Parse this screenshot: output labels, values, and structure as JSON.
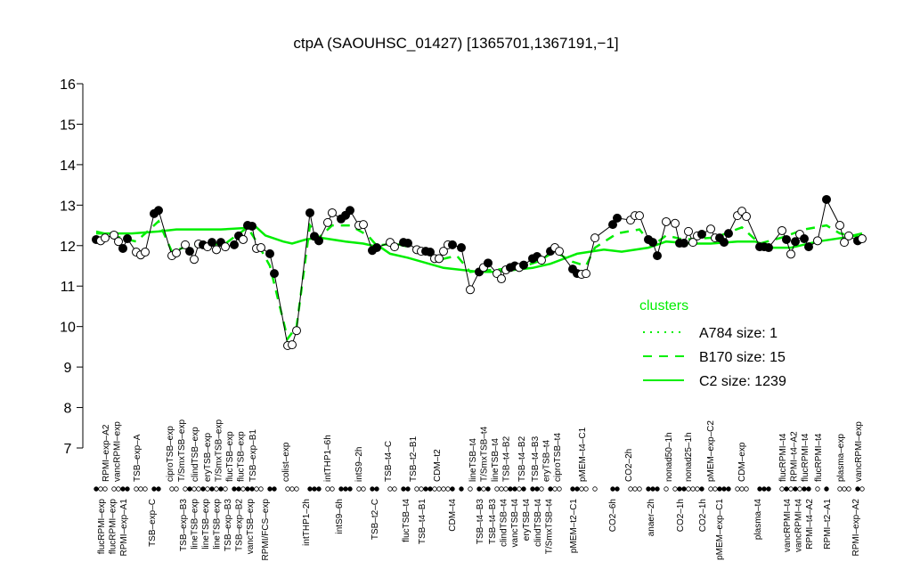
{
  "chart_data": {
    "type": "scatter",
    "title": "ctpA (SAOUHSC_01427) [1365701,1367191,−1]",
    "xlabel": "",
    "ylabel": "",
    "ylim": [
      7,
      16
    ],
    "xlim": [
      1,
      173
    ],
    "yticks": [
      "7",
      "8",
      "9",
      "10",
      "11",
      "12",
      "13",
      "14",
      "15",
      "16"
    ],
    "grid": false,
    "colors": {
      "points": "#000000",
      "clusters": "#00ee00"
    },
    "points": [
      [
        1,
        12.15,
        1
      ],
      [
        2,
        12.12,
        0
      ],
      [
        3,
        12.19,
        0
      ],
      [
        5,
        12.26,
        0
      ],
      [
        6,
        12.1,
        0
      ],
      [
        7,
        11.93,
        1
      ],
      [
        8,
        12.17,
        1
      ],
      [
        10,
        11.84,
        0
      ],
      [
        11,
        11.77,
        0
      ],
      [
        12,
        11.84,
        0
      ],
      [
        14,
        12.79,
        1
      ],
      [
        15,
        12.87,
        1
      ],
      [
        18,
        11.75,
        0
      ],
      [
        19,
        11.82,
        0
      ],
      [
        21,
        12.02,
        0
      ],
      [
        22,
        11.86,
        1
      ],
      [
        23,
        11.66,
        0
      ],
      [
        24,
        12.04,
        0
      ],
      [
        25,
        12.02,
        1
      ],
      [
        26,
        11.97,
        0
      ],
      [
        27,
        12.08,
        1
      ],
      [
        28,
        11.9,
        0
      ],
      [
        29,
        12.08,
        1
      ],
      [
        30,
        11.97,
        0
      ],
      [
        32,
        12.02,
        1
      ],
      [
        33,
        12.24,
        1
      ],
      [
        34,
        12.15,
        0
      ],
      [
        35,
        12.5,
        1
      ],
      [
        36,
        12.48,
        1
      ],
      [
        37,
        11.93,
        0
      ],
      [
        38,
        11.95,
        0
      ],
      [
        40,
        11.8,
        1
      ],
      [
        41,
        11.31,
        1
      ],
      [
        44,
        9.53,
        0
      ],
      [
        45,
        9.55,
        0
      ],
      [
        46,
        9.9,
        0
      ],
      [
        49,
        12.81,
        1
      ],
      [
        50,
        12.23,
        1
      ],
      [
        51,
        12.12,
        1
      ],
      [
        53,
        12.57,
        0
      ],
      [
        54,
        12.81,
        0
      ],
      [
        56,
        12.66,
        1
      ],
      [
        57,
        12.75,
        1
      ],
      [
        58,
        12.87,
        1
      ],
      [
        60,
        12.5,
        0
      ],
      [
        61,
        12.52,
        0
      ],
      [
        63,
        11.88,
        1
      ],
      [
        64,
        11.95,
        1
      ],
      [
        67,
        12.08,
        0
      ],
      [
        68,
        11.97,
        0
      ],
      [
        70,
        12.08,
        1
      ],
      [
        71,
        12.06,
        1
      ],
      [
        73,
        11.9,
        0
      ],
      [
        74,
        11.86,
        0
      ],
      [
        75,
        11.86,
        1
      ],
      [
        76,
        11.84,
        1
      ],
      [
        77,
        11.68,
        0
      ],
      [
        78,
        11.68,
        0
      ],
      [
        79,
        11.86,
        0
      ],
      [
        80,
        12.02,
        0
      ],
      [
        81,
        12.02,
        1
      ],
      [
        83,
        11.95,
        1
      ],
      [
        85,
        10.91,
        0
      ],
      [
        87,
        11.35,
        1
      ],
      [
        88,
        11.46,
        0
      ],
      [
        89,
        11.57,
        1
      ],
      [
        91,
        11.31,
        0
      ],
      [
        92,
        11.18,
        0
      ],
      [
        93,
        11.4,
        0
      ],
      [
        94,
        11.46,
        1
      ],
      [
        95,
        11.5,
        1
      ],
      [
        96,
        11.46,
        0
      ],
      [
        97,
        11.52,
        1
      ],
      [
        99,
        11.68,
        1
      ],
      [
        100,
        11.73,
        1
      ],
      [
        101,
        11.64,
        0
      ],
      [
        103,
        11.86,
        1
      ],
      [
        104,
        11.95,
        0
      ],
      [
        105,
        11.86,
        0
      ],
      [
        108,
        11.42,
        1
      ],
      [
        109,
        11.31,
        1
      ],
      [
        110,
        11.29,
        0
      ],
      [
        111,
        11.31,
        0
      ],
      [
        113,
        12.19,
        0
      ],
      [
        117,
        12.52,
        1
      ],
      [
        118,
        12.68,
        1
      ],
      [
        121,
        12.63,
        0
      ],
      [
        122,
        12.74,
        0
      ],
      [
        123,
        12.74,
        0
      ],
      [
        125,
        12.15,
        1
      ],
      [
        126,
        12.08,
        1
      ],
      [
        127,
        11.75,
        1
      ],
      [
        129,
        12.59,
        0
      ],
      [
        131,
        12.55,
        0
      ],
      [
        132,
        12.06,
        1
      ],
      [
        133,
        12.06,
        1
      ],
      [
        134,
        12.35,
        0
      ],
      [
        135,
        12.08,
        0
      ],
      [
        136,
        12.24,
        0
      ],
      [
        137,
        12.28,
        1
      ],
      [
        139,
        12.41,
        0
      ],
      [
        140,
        12.19,
        0
      ],
      [
        141,
        12.19,
        1
      ],
      [
        142,
        12.08,
        1
      ],
      [
        143,
        12.3,
        1
      ],
      [
        145,
        12.74,
        0
      ],
      [
        146,
        12.85,
        0
      ],
      [
        147,
        12.72,
        0
      ],
      [
        150,
        11.97,
        1
      ],
      [
        151,
        11.97,
        1
      ],
      [
        152,
        11.95,
        1
      ],
      [
        155,
        12.37,
        0
      ],
      [
        156,
        12.15,
        1
      ],
      [
        157,
        11.79,
        0
      ],
      [
        158,
        12.1,
        1
      ],
      [
        159,
        12.28,
        0
      ],
      [
        160,
        12.17,
        1
      ],
      [
        161,
        11.97,
        1
      ],
      [
        163,
        12.12,
        0
      ],
      [
        165,
        13.14,
        1
      ],
      [
        168,
        12.5,
        0
      ],
      [
        169,
        12.08,
        0
      ],
      [
        170,
        12.24,
        0
      ],
      [
        172,
        12.12,
        1
      ],
      [
        173,
        12.17,
        0
      ]
    ],
    "series": [
      {
        "name": "C2 size: 1239",
        "style": "solid",
        "x": [
          1,
          9,
          15,
          19,
          29,
          37,
          39,
          43,
          45,
          48,
          51,
          57,
          61,
          65,
          67,
          71,
          79,
          87,
          91,
          99,
          103,
          109,
          115,
          119,
          125,
          129,
          135,
          139,
          145,
          149,
          153,
          157,
          163,
          169,
          173
        ],
        "values": [
          12.3,
          12.3,
          12.35,
          12.4,
          12.4,
          12.45,
          12.25,
          12.1,
          12.05,
          12.15,
          12.2,
          12.1,
          12.05,
          11.95,
          11.8,
          11.7,
          11.45,
          11.35,
          11.35,
          11.45,
          11.55,
          11.8,
          11.9,
          11.85,
          11.95,
          12.1,
          12.05,
          12.05,
          12.1,
          12.1,
          11.95,
          11.95,
          12.1,
          12.2,
          12.3
        ]
      },
      {
        "name": "B170 size: 15",
        "style": "dashed",
        "x": [
          1,
          10,
          14,
          15,
          18,
          22,
          30,
          35,
          37,
          40,
          44,
          46,
          49,
          51,
          54,
          58,
          62,
          64,
          68,
          74,
          78,
          82,
          85,
          90,
          96,
          100,
          104,
          108,
          111,
          113,
          118,
          123,
          126,
          129,
          133,
          140,
          146,
          150,
          155,
          160,
          165,
          168,
          173
        ],
        "values": [
          12.35,
          12.1,
          12.5,
          12.6,
          11.85,
          12.0,
          12.05,
          12.45,
          12.1,
          11.5,
          9.7,
          10.0,
          12.5,
          12.2,
          12.5,
          12.5,
          12.25,
          12.0,
          12.05,
          11.9,
          11.65,
          11.75,
          11.35,
          11.4,
          11.45,
          11.6,
          11.85,
          11.6,
          11.5,
          11.95,
          12.3,
          12.4,
          12.0,
          12.25,
          12.15,
          12.2,
          12.45,
          12.05,
          12.2,
          12.4,
          12.5,
          12.3,
          12.2
        ]
      },
      {
        "name": "A784 size: 1",
        "style": "dotted",
        "x": [],
        "values": []
      }
    ],
    "legend": {
      "title": "clusters",
      "placement": "right",
      "entries": [
        "A784 size: 1",
        "B170 size: 15",
        "C2 size: 1239"
      ]
    },
    "x_labels_top": [
      [
        "RPMI–exp–A2",
        3
      ],
      [
        "vancRPMI–exp",
        4.6
      ],
      [
        "TSB–exp–A",
        10
      ],
      [
        "ciproTSB–exp",
        17.4
      ],
      [
        "T/SmxTSB–exp",
        20
      ],
      [
        "clindTSB–exp",
        23
      ],
      [
        "eryTSB–exp",
        25.8
      ],
      [
        "T/SmxTSB–exp",
        28
      ],
      [
        "flucTSB–exp",
        30
      ],
      [
        "flucTSB–exp",
        32.8
      ],
      [
        "TSB–exp–B1",
        36
      ],
      [
        "colist–exp",
        43.4
      ],
      [
        "intTHP1–6h",
        52.8
      ],
      [
        "intS9–2h",
        59.8
      ],
      [
        "TSB–t4–C",
        66.4
      ],
      [
        "TSB–t2–B1",
        72
      ],
      [
        "CDM–t2",
        77.4
      ],
      [
        "lineTSB–t4",
        85.4
      ],
      [
        "T/SmxTSB–t4",
        87.8
      ],
      [
        "lineTSB–t4",
        90
      ],
      [
        "TSB–t4–B2",
        92
      ],
      [
        "TSB–t4–B2",
        96.4
      ],
      [
        "TSB–t4–B3",
        99.4
      ],
      [
        "eryTSB–t4",
        101.4
      ],
      [
        "ciproTSB–t4",
        103.4
      ],
      [
        "pMEM–t4–C1",
        110
      ],
      [
        "CO2–2h",
        120.4
      ],
      [
        "nonad50–1h",
        129.4
      ],
      [
        "nonad25–1h",
        133.8
      ],
      [
        "pMEM–exp–C2",
        138.8
      ],
      [
        "CDM–exp",
        145.8
      ],
      [
        "flucRPMI–t4",
        155
      ],
      [
        "RPMI–t4–A2",
        155.8
      ],
      [
        "flucRPMI–t4",
        159.4
      ],
      [
        "flucRPMI–t4",
        163
      ],
      [
        "plasma–exp",
        168
      ],
      [
        "vancRPMI–exp",
        172
      ]
    ],
    "x_labels_bottom": [
      [
        "flucRPMI–exp",
        2
      ],
      [
        "flucRPMI–exp",
        4
      ],
      [
        "RPMI–exp–A1",
        6
      ],
      [
        "TSB–exp–C",
        13.4
      ],
      [
        "TSB–exp–B3",
        20.4
      ],
      [
        "lineTSB–exp",
        22.4
      ],
      [
        "lineTSB–exp",
        24.8
      ],
      [
        "lineTSB–exp",
        27.8
      ],
      [
        "TSB–exp–B3",
        28.8
      ],
      [
        "TSB–exp–B2",
        31
      ],
      [
        "vancTSB–exp",
        33.4
      ],
      [
        "RPMI/FCS–exp",
        38.8
      ],
      [
        "intTHP1–2h",
        48
      ],
      [
        "intS9–6h",
        55.4
      ],
      [
        "TSB–t2–C",
        63.4
      ],
      [
        "flucTSB–t4",
        70.4
      ],
      [
        "TSB–t4–B1",
        74
      ],
      [
        "CDM–t4",
        80.8
      ],
      [
        "TSB–t4–B3",
        87
      ],
      [
        "TSB–t4–B3",
        89.8
      ],
      [
        "clindTSB–t4",
        92
      ],
      [
        "vancTSB–t4",
        94.8
      ],
      [
        "eryTSB–t4",
        97.4
      ],
      [
        "clindTSB–t4",
        100
      ],
      [
        "T/SmxTSB–t4",
        102
      ],
      [
        "pMEM–t2–C1",
        108
      ],
      [
        "CO2–6h",
        116.8
      ],
      [
        "anaer–2h",
        125.4
      ],
      [
        "CO2–1h",
        132
      ],
      [
        "CO2–1h",
        137
      ],
      [
        "pMEM–exp–C1",
        140.8
      ],
      [
        "plasma–t4",
        149.4
      ],
      [
        "vancRPMI–t4",
        156
      ],
      [
        "vancRPMI–t4",
        157.4
      ],
      [
        "RPMI–t4–A2",
        160
      ],
      [
        "RPMI–t2–A1",
        165
      ],
      [
        "RPMI–exp–A2",
        171.4
      ]
    ]
  }
}
